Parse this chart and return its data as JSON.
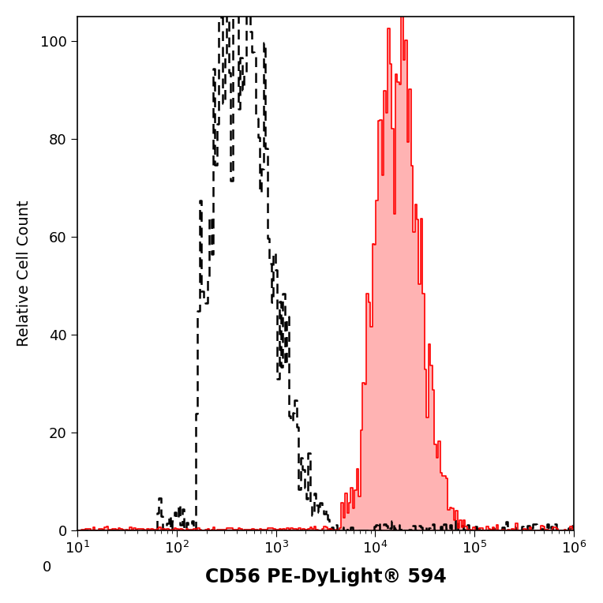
{
  "xlabel": "CD56 PE-DyLight® 594",
  "ylabel": "Relative Cell Count",
  "ylim": [
    0,
    105
  ],
  "yticks": [
    0,
    20,
    40,
    60,
    80,
    100
  ],
  "background_color": "#ffffff",
  "plot_bg_color": "#ffffff",
  "dashed_peak_log": 2.62,
  "dashed_sigma_log": 0.32,
  "solid_peak_log": 4.22,
  "solid_sigma_log": 0.22,
  "dashed_color": "#000000",
  "solid_color": "#ff0000",
  "solid_fill_color": "#ffb3b3",
  "xlabel_fontsize": 17,
  "ylabel_fontsize": 14,
  "tick_fontsize": 13,
  "xlabel_fontweight": "bold",
  "linewidth_dashed": 1.8,
  "linewidth_solid": 1.2
}
